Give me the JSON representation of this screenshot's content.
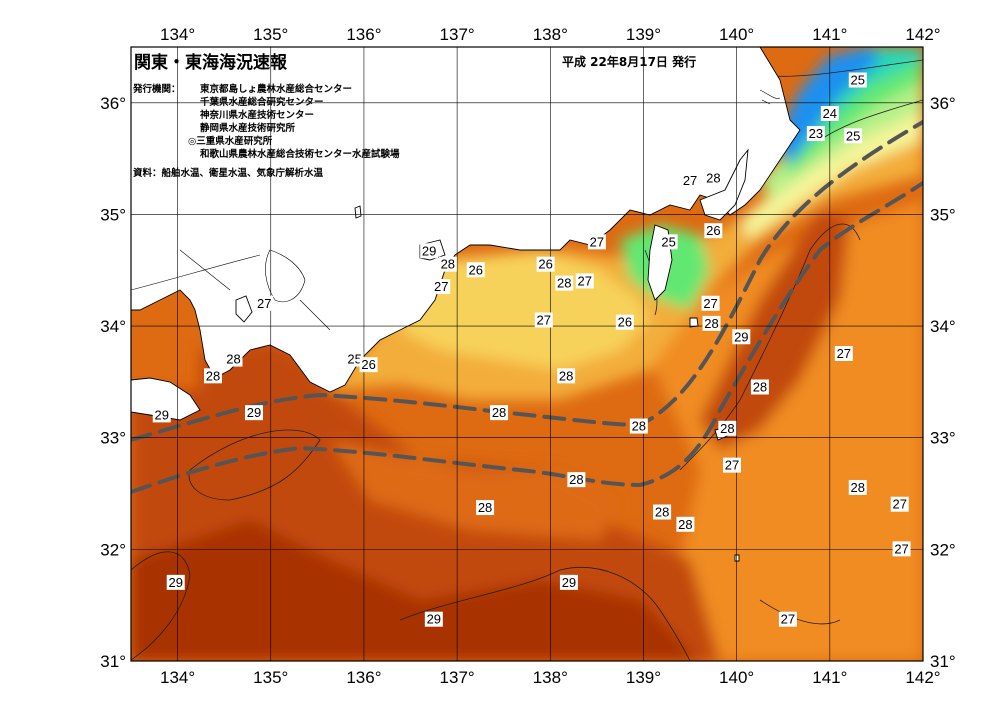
{
  "header": {
    "title": "関東・東海海況速報",
    "date": "平成 22年8月17日 発行",
    "issuer_label": "発行機関：",
    "issuers": [
      "東京都島しょ農林水産総合センター",
      "千葉県水産総合研究センター",
      "神奈川県水産技術センター",
      "静岡県水産技術研究所",
      "◎三重県水産研究所",
      "和歌山県農林水産総合技術センター水産試験場"
    ],
    "source": "資料：船舶水温、衛星水温、気象庁解析水温"
  },
  "axes": {
    "lon_ticks": [
      "134°",
      "135°",
      "136°",
      "137°",
      "138°",
      "139°",
      "140°",
      "141°",
      "142°"
    ],
    "lat_ticks": [
      "36°",
      "35°",
      "34°",
      "33°",
      "32°",
      "31°"
    ],
    "lon_range": [
      133.5,
      142.0
    ],
    "lat_range": [
      31.0,
      36.5
    ]
  },
  "contour_labels": [
    {
      "text": "25",
      "lon": 141.3,
      "lat": 36.2
    },
    {
      "text": "24",
      "lon": 141.0,
      "lat": 35.9
    },
    {
      "text": "23",
      "lon": 140.85,
      "lat": 35.72
    },
    {
      "text": "25",
      "lon": 141.25,
      "lat": 35.7
    },
    {
      "text": "27",
      "lon": 139.5,
      "lat": 35.3
    },
    {
      "text": "28",
      "lon": 139.75,
      "lat": 35.32
    },
    {
      "text": "27",
      "lon": 138.5,
      "lat": 34.75
    },
    {
      "text": "26",
      "lon": 139.75,
      "lat": 34.85
    },
    {
      "text": "25",
      "lon": 139.27,
      "lat": 34.75
    },
    {
      "text": "29",
      "lon": 136.7,
      "lat": 34.67
    },
    {
      "text": "28",
      "lon": 136.9,
      "lat": 34.55
    },
    {
      "text": "26",
      "lon": 137.2,
      "lat": 34.5
    },
    {
      "text": "26",
      "lon": 137.95,
      "lat": 34.55
    },
    {
      "text": "28",
      "lon": 138.15,
      "lat": 34.38
    },
    {
      "text": "27",
      "lon": 138.37,
      "lat": 34.4
    },
    {
      "text": "27",
      "lon": 136.83,
      "lat": 34.35
    },
    {
      "text": "27",
      "lon": 134.93,
      "lat": 34.2
    },
    {
      "text": "27",
      "lon": 139.72,
      "lat": 34.2
    },
    {
      "text": "27",
      "lon": 137.93,
      "lat": 34.05
    },
    {
      "text": "26",
      "lon": 138.8,
      "lat": 34.03
    },
    {
      "text": "28",
      "lon": 139.73,
      "lat": 34.02
    },
    {
      "text": "29",
      "lon": 140.05,
      "lat": 33.9
    },
    {
      "text": "25",
      "lon": 135.9,
      "lat": 33.7
    },
    {
      "text": "26",
      "lon": 136.05,
      "lat": 33.65
    },
    {
      "text": "28",
      "lon": 134.6,
      "lat": 33.7
    },
    {
      "text": "28",
      "lon": 134.38,
      "lat": 33.55
    },
    {
      "text": "28",
      "lon": 138.17,
      "lat": 33.55
    },
    {
      "text": "28",
      "lon": 140.25,
      "lat": 33.45
    },
    {
      "text": "27",
      "lon": 141.15,
      "lat": 33.75
    },
    {
      "text": "29",
      "lon": 133.83,
      "lat": 33.2
    },
    {
      "text": "29",
      "lon": 134.82,
      "lat": 33.22
    },
    {
      "text": "28",
      "lon": 137.45,
      "lat": 33.22
    },
    {
      "text": "28",
      "lon": 138.95,
      "lat": 33.1
    },
    {
      "text": "28",
      "lon": 139.9,
      "lat": 33.08
    },
    {
      "text": "27",
      "lon": 139.95,
      "lat": 32.75
    },
    {
      "text": "28",
      "lon": 138.28,
      "lat": 32.62
    },
    {
      "text": "28",
      "lon": 141.3,
      "lat": 32.55
    },
    {
      "text": "27",
      "lon": 141.75,
      "lat": 32.4
    },
    {
      "text": "28",
      "lon": 137.3,
      "lat": 32.37
    },
    {
      "text": "28",
      "lon": 139.2,
      "lat": 32.33
    },
    {
      "text": "28",
      "lon": 139.45,
      "lat": 32.22
    },
    {
      "text": "27",
      "lon": 141.77,
      "lat": 32.0
    },
    {
      "text": "29",
      "lon": 133.98,
      "lat": 31.7
    },
    {
      "text": "29",
      "lon": 138.2,
      "lat": 31.7
    },
    {
      "text": "29",
      "lon": 136.75,
      "lat": 31.37
    },
    {
      "text": "27",
      "lon": 140.55,
      "lat": 31.37
    }
  ],
  "colors": {
    "sst_30": "#a83200",
    "sst_29": "#c24a08",
    "sst_28": "#de6a12",
    "sst_27": "#f08c24",
    "sst_26": "#f3ad3a",
    "sst_25": "#f7d25a",
    "sst_24": "#f5f59a",
    "sst_23": "#b6f08a",
    "sst_22": "#62e872",
    "sst_21": "#2bd6b6",
    "sst_20": "#1e90f0",
    "land": "#ffffff",
    "kuroshio_axis": "#555555"
  }
}
